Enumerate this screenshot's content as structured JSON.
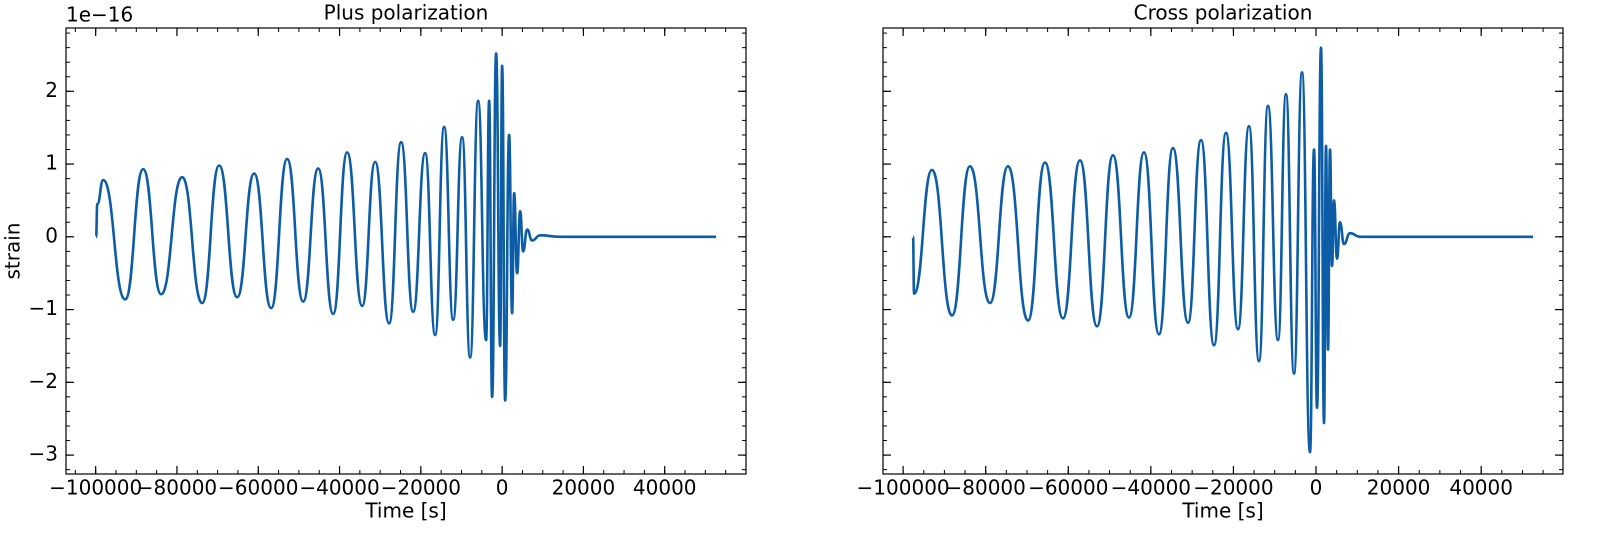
{
  "chart_data": [
    {
      "type": "line",
      "title": "Plus polarization",
      "xlabel": "Time [s]",
      "ylabel": "strain",
      "offset_text": "1e−16",
      "color": "#0C5DA5",
      "x": [
        -99900,
        -99600,
        -98150,
        -92740,
        -88310,
        -83890,
        -78720,
        -73800,
        -69620,
        -65190,
        -61010,
        -56830,
        -52890,
        -48950,
        -45260,
        -41570,
        -38130,
        -34440,
        -31240,
        -27800,
        -24850,
        -21890,
        -18940,
        -16480,
        -14270,
        -12050,
        -9840,
        -7870,
        -5900,
        -3940,
        -3200,
        -2460,
        -1480,
        -490,
        0,
        740,
        1720,
        2460,
        2950,
        3690,
        4430,
        5170,
        6150,
        7380,
        9350,
        14270,
        52640
      ],
      "values": [
        0,
        0.45,
        0.78,
        -0.86,
        0.93,
        -0.79,
        0.82,
        -0.91,
        0.98,
        -0.83,
        0.87,
        -0.98,
        1.07,
        -0.89,
        0.94,
        -1.06,
        1.16,
        -0.95,
        1.03,
        -1.19,
        1.3,
        -1.03,
        1.15,
        -1.35,
        1.51,
        -1.14,
        1.37,
        -1.66,
        1.87,
        -1.42,
        1.87,
        -2.2,
        2.52,
        -1.5,
        2.35,
        -2.25,
        1.4,
        -1.05,
        0.6,
        -0.5,
        0.35,
        -0.2,
        0.1,
        -0.05,
        0.02,
        0,
        0
      ],
      "xlim": [
        -107300,
        60000
      ],
      "ylim": [
        -3.26,
        2.87
      ],
      "xticks": [
        {
          "value": -100000,
          "label": "−100000"
        },
        {
          "value": -80000,
          "label": "−80000"
        },
        {
          "value": -60000,
          "label": "−60000"
        },
        {
          "value": -40000,
          "label": "−40000"
        },
        {
          "value": -20000,
          "label": "−20000"
        },
        0,
        20000,
        40000
      ],
      "yticks": [
        {
          "value": -3,
          "label": "−3"
        },
        {
          "value": -2,
          "label": "−2"
        },
        {
          "value": -1,
          "label": "−1"
        },
        0,
        1,
        2
      ],
      "tick_direction": "in",
      "minor_ticks": true,
      "ytick_labels": true
    },
    {
      "type": "line",
      "title": "Cross polarization",
      "xlabel": "Time [s]",
      "color": "#0C5DA5",
      "x": [
        -97600,
        -97350,
        -93000,
        -88160,
        -83800,
        -78960,
        -74600,
        -69750,
        -65640,
        -61280,
        -57160,
        -53040,
        -49170,
        -45290,
        -41660,
        -38030,
        -34640,
        -31000,
        -27850,
        -24700,
        -21800,
        -18890,
        -16230,
        -13810,
        -11630,
        -9200,
        -7270,
        -5330,
        -3390,
        -1450,
        -480,
        240,
        1210,
        1940,
        2420,
        2910,
        3390,
        3880,
        4360,
        5090,
        5810,
        6780,
        8230,
        10660,
        52560
      ],
      "values": [
        0,
        -0.78,
        0.92,
        -1.08,
        0.97,
        -0.91,
        0.97,
        -1.15,
        1.02,
        -1.12,
        1.05,
        -1.23,
        1.12,
        -1.11,
        1.16,
        -1.34,
        1.22,
        -1.18,
        1.33,
        -1.49,
        1.43,
        -1.27,
        1.52,
        -1.71,
        1.8,
        -1.42,
        1.96,
        -1.88,
        2.26,
        -2.96,
        1.2,
        -2.35,
        2.6,
        -2.56,
        1.25,
        -1.55,
        1.2,
        -0.4,
        0.5,
        -0.3,
        0.2,
        -0.1,
        0.05,
        0,
        0
      ],
      "xlim": [
        -104870,
        59820
      ],
      "ylim": [
        -3.26,
        2.87
      ],
      "xticks": [
        {
          "value": -100000,
          "label": "−100000"
        },
        {
          "value": -80000,
          "label": "−80000"
        },
        {
          "value": -60000,
          "label": "−60000"
        },
        {
          "value": -40000,
          "label": "−40000"
        },
        {
          "value": -20000,
          "label": "−20000"
        },
        0,
        20000,
        40000
      ],
      "yticks": [
        -3,
        -2,
        -1,
        0,
        1,
        2
      ],
      "tick_direction": "in",
      "minor_ticks": true,
      "ytick_labels": false
    }
  ]
}
